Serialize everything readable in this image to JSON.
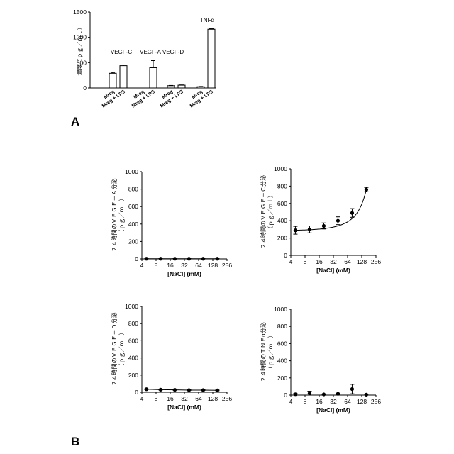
{
  "panel_labels": {
    "a": "A",
    "b": "B"
  },
  "chart_data": [
    {
      "id": "A",
      "type": "bar",
      "ylabel": "濃度（ｐｇ／ｍｌ）",
      "ylim": [
        0,
        1500
      ],
      "yticks": [
        "0",
        "500",
        "1000",
        "1500"
      ],
      "categories": [
        "Mreg",
        "Mreg + LPS",
        "Mreg",
        "Mreg + LPS",
        "Mreg",
        "Mreg + LPS",
        "Mreg",
        "Mreg + LPS"
      ],
      "values": [
        290,
        440,
        0,
        400,
        45,
        55,
        25,
        1160
      ],
      "errors": [
        15,
        15,
        0,
        140,
        5,
        5,
        5,
        10
      ],
      "group_labels": [
        "VEGF-C",
        "VEGF-A",
        "VEGF-D",
        "TNFα"
      ]
    },
    {
      "id": "B1",
      "type": "line",
      "xlabel": "[NaCl] (mM)",
      "ylabel_line1": "２４時間のＶＥＧＦ－Ａ分泌",
      "ylabel_line2": "（ｐｇ／ｍｌ）",
      "xscale": "log2",
      "xlim": [
        4,
        256
      ],
      "xticks": [
        "4",
        "8",
        "16",
        "32",
        "64",
        "128",
        "256"
      ],
      "ylim": [
        0,
        1000
      ],
      "yticks": [
        "0",
        "200",
        "400",
        "600",
        "800",
        "1000"
      ],
      "x": [
        5,
        10,
        20,
        40,
        80,
        160
      ],
      "y": [
        2,
        2,
        2,
        2,
        2,
        2
      ],
      "err": [
        1,
        1,
        1,
        1,
        1,
        1
      ]
    },
    {
      "id": "B2",
      "type": "line",
      "xlabel": "[NaCl] (mM)",
      "ylabel_line1": "２４時間のＶＥＧＦ－Ｃ分泌",
      "ylabel_line2": "（ｐｇ／ｍｌ）",
      "xscale": "log2",
      "xlim": [
        4,
        256
      ],
      "xticks": [
        "4",
        "8",
        "16",
        "32",
        "64",
        "128",
        "256"
      ],
      "ylim": [
        0,
        1000
      ],
      "yticks": [
        "0",
        "200",
        "400",
        "600",
        "800",
        "1000"
      ],
      "x": [
        5,
        10,
        20,
        40,
        80,
        160
      ],
      "y": [
        290,
        300,
        340,
        400,
        490,
        760
      ],
      "err": [
        45,
        40,
        35,
        45,
        50,
        25
      ]
    },
    {
      "id": "B3",
      "type": "line",
      "xlabel": "[NaCl] (mM)",
      "ylabel_line1": "２４時間のＶＥＧＦ－Ｄ分泌",
      "ylabel_line2": "（ｐｇ／ｍｌ）",
      "xscale": "log2",
      "xlim": [
        4,
        256
      ],
      "xticks": [
        "4",
        "8",
        "16",
        "32",
        "64",
        "128",
        "256"
      ],
      "ylim": [
        0,
        1000
      ],
      "yticks": [
        "0",
        "200",
        "400",
        "600",
        "800",
        "1000"
      ],
      "x": [
        5,
        10,
        20,
        40,
        80,
        160
      ],
      "y": [
        35,
        30,
        28,
        25,
        25,
        22
      ],
      "err": [
        4,
        4,
        4,
        4,
        4,
        4
      ]
    },
    {
      "id": "B4",
      "type": "scatter",
      "xlabel": "[NaCl] (mM)",
      "ylabel_line1": "２４時間のＴＮＦα分泌",
      "ylabel_line2": "（ｐｇ／ｍｌ）",
      "xscale": "log2",
      "xlim": [
        4,
        256
      ],
      "xticks": [
        "4",
        "8",
        "16",
        "32",
        "64",
        "128",
        "256"
      ],
      "ylim": [
        0,
        1000
      ],
      "yticks": [
        "0",
        "200",
        "400",
        "600",
        "800",
        "1000"
      ],
      "x": [
        5,
        10,
        20,
        40,
        80,
        160
      ],
      "y": [
        10,
        20,
        8,
        15,
        70,
        5
      ],
      "err": [
        8,
        25,
        5,
        8,
        55,
        5
      ]
    }
  ]
}
